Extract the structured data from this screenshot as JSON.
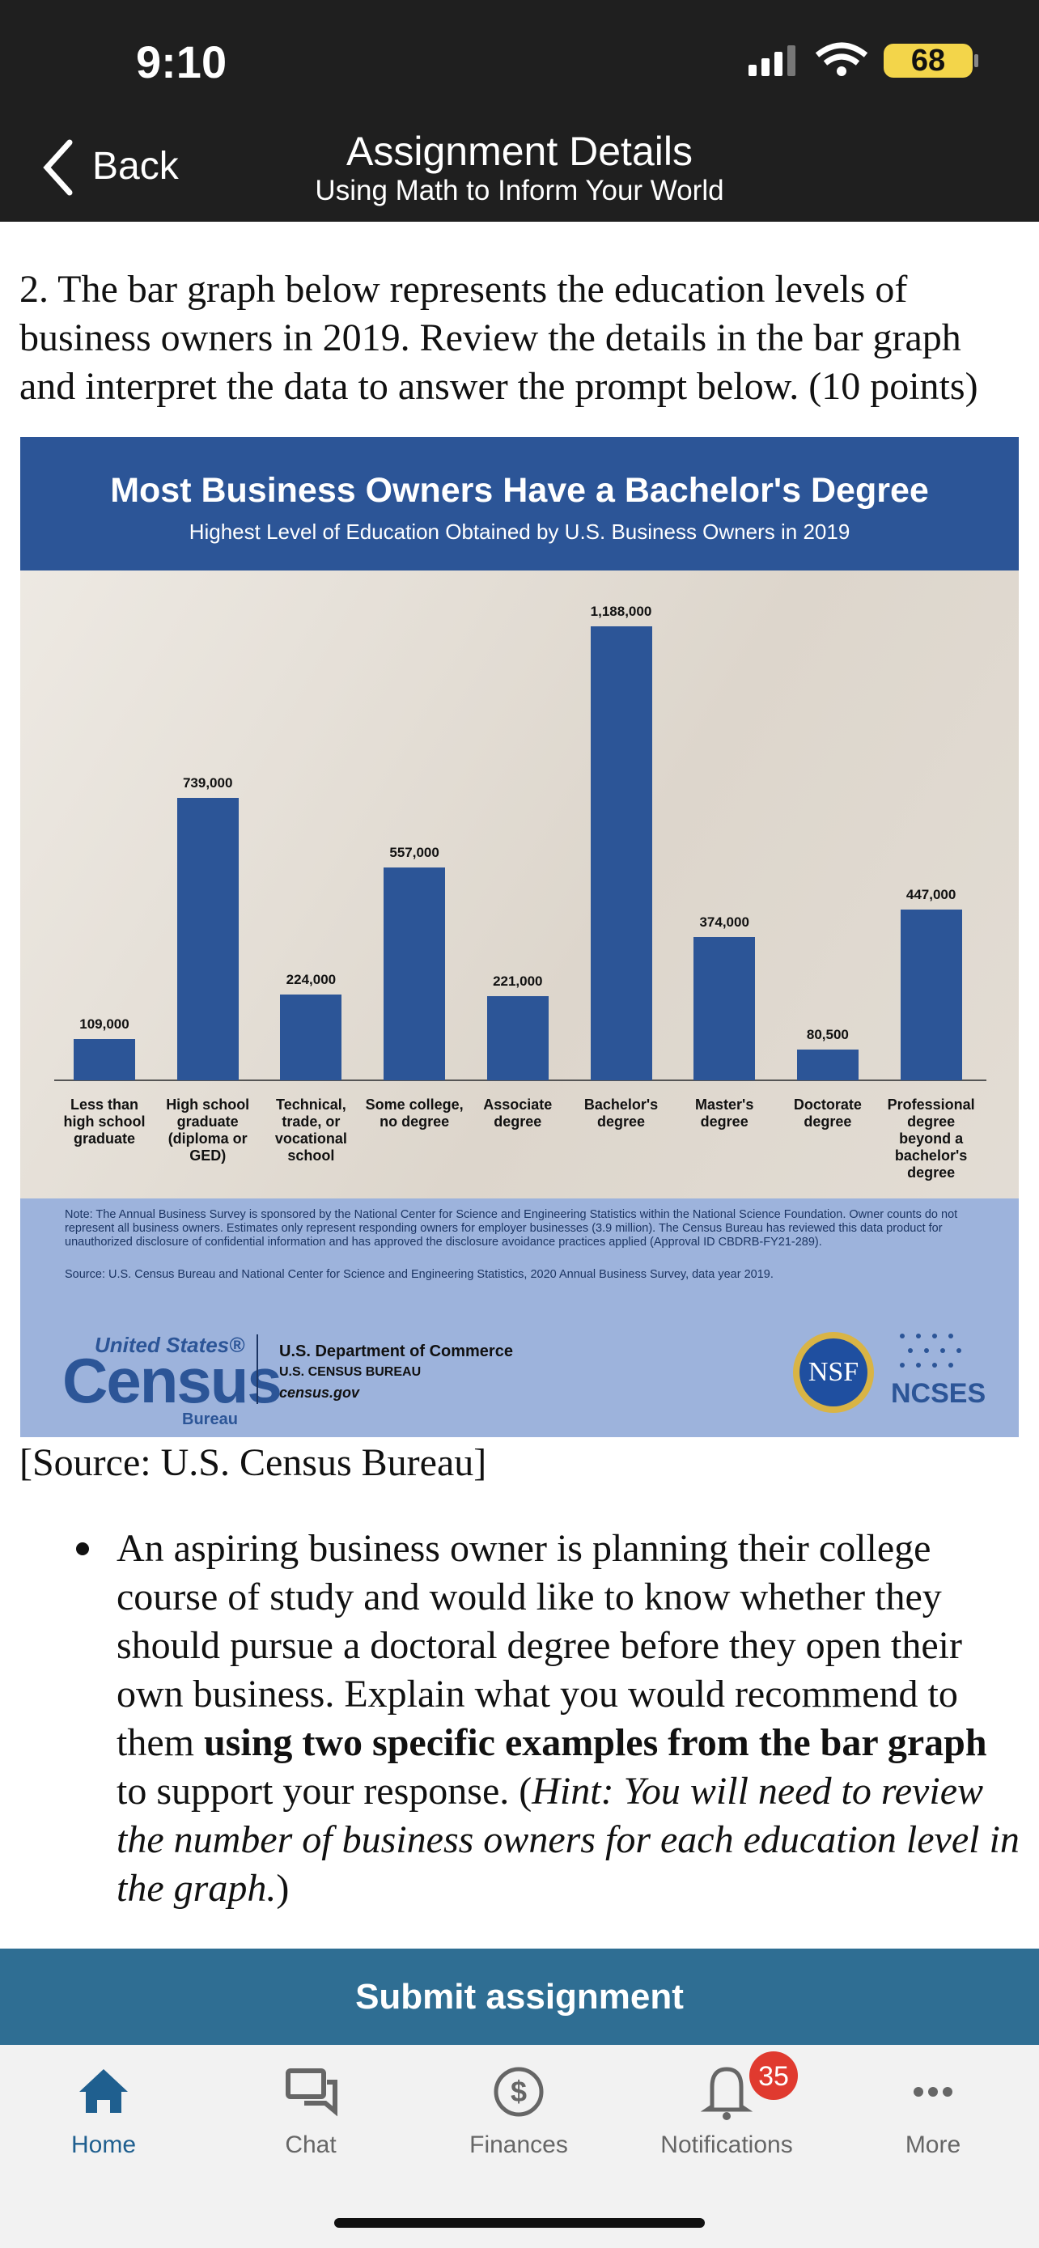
{
  "status_bar": {
    "time": "9:10",
    "battery": "68"
  },
  "nav": {
    "back": "Back",
    "title": "Assignment Details",
    "subtitle": "Using Math to Inform Your World"
  },
  "question": "2. The bar graph below represents the education levels of business owners in 2019. Review the details in the bar graph and interpret the data to answer the prompt below. (10 points)",
  "chart_data": {
    "type": "bar",
    "title": "Most Business Owners Have a Bachelor's Degree",
    "subtitle": "Highest Level of Education Obtained by U.S. Business Owners in 2019",
    "categories": [
      "Less than high school graduate",
      "High school graduate (diploma or GED)",
      "Technical, trade, or vocational school",
      "Some college, no degree",
      "Associate degree",
      "Bachelor's degree",
      "Master's degree",
      "Doctorate degree",
      "Professional degree beyond a bachelor's degree"
    ],
    "values": [
      109000,
      739000,
      224000,
      557000,
      221000,
      1188000,
      374000,
      80500,
      447000
    ],
    "value_labels": [
      "109,000",
      "739,000",
      "224,000",
      "557,000",
      "221,000",
      "1,188,000",
      "374,000",
      "80,500",
      "447,000"
    ],
    "color": "#2c5597",
    "note": "Note: The Annual Business Survey is sponsored by the National Center for Science and Engineering Statistics within the National Science Foundation. Owner counts do not represent all business owners. Estimates only represent responding owners for employer businesses (3.9 million). The Census Bureau has reviewed this data product for unauthorized disclosure of confidential information and has approved the disclosure avoidance practices applied (Approval ID CBDRB-FY21-289).",
    "source": "Source: U.S. Census Bureau and National Center for Science and Engineering Statistics, 2020 Annual Business Survey, data year 2019."
  },
  "logos": {
    "census_top": "United States®",
    "census": "Census",
    "census_bottom": "Bureau",
    "dept": "U.S. Department of Commerce",
    "bureau": "U.S. CENSUS BUREAU",
    "site": "census.gov",
    "nsf": "NSF",
    "ncses": "NCSES"
  },
  "image_source": "[Source: U.S. Census Bureau]",
  "prompt": {
    "parts": [
      "An aspiring business owner is planning their college course of study and would like to know whether they should pursue a doctoral degree before they open their own business. Explain what you would recommend to them ",
      "using two specific examples from the bar graph",
      " to support your response. (",
      "Hint: You will need to review the number of business owners for each education level in the graph.",
      ")"
    ]
  },
  "submit": "Submit assignment",
  "tabs": [
    "Home",
    "Chat",
    "Finances",
    "Notifications",
    "More"
  ],
  "badge": "35"
}
